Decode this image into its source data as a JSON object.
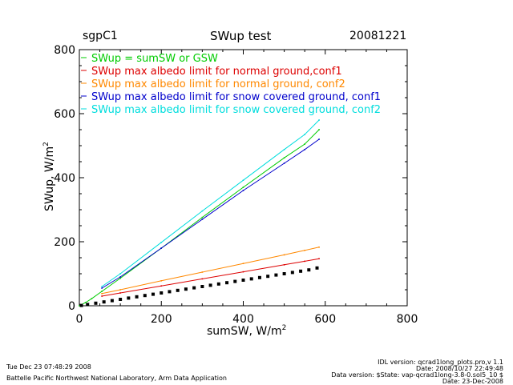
{
  "header": {
    "site": "sgpC1",
    "title": "SWup test",
    "date": "20081221"
  },
  "footer": {
    "timestamp": "Tue Dec 23 07:48:29 2008",
    "lab": "Battelle Pacific Northwest National Laboratory, Arm Data Application",
    "idl_version": "IDL version: qcrad1long_plots.pro,v 1.1",
    "idl_date": "Date: 2008/10/27 22:49:48",
    "data_version": "Data version: $State: vap-qcrad1long-3.8-0.sol5_10 $",
    "data_date": "Date: 23-Dec-2008"
  },
  "chart_data": {
    "type": "scatter",
    "title": "SWup test",
    "xlabel": "sumSW, W/m",
    "xlabel_sup": "2",
    "ylabel": "SWup, W/m",
    "ylabel_sup": "2",
    "xlim": [
      0,
      800
    ],
    "ylim": [
      0,
      800
    ],
    "xticks": [
      0,
      200,
      400,
      600,
      800
    ],
    "yticks": [
      0,
      200,
      400,
      600,
      800
    ],
    "grid": false,
    "legend_position": "top-left",
    "series": [
      {
        "name": "SWup = sumSW or GSW",
        "color": "#00cc00",
        "x": [
          0,
          15,
          30,
          55,
          100,
          200,
          300,
          400,
          500,
          550,
          585
        ],
        "y": [
          0,
          10,
          22,
          45,
          86,
          180,
          276,
          370,
          462,
          505,
          550
        ]
      },
      {
        "name": "SWup max albedo limit for normal ground,conf1",
        "color": "#dd0000",
        "x": [
          55,
          100,
          200,
          300,
          400,
          500,
          550,
          585
        ],
        "y": [
          30,
          40,
          62,
          84,
          106,
          128,
          139,
          147
        ]
      },
      {
        "name": "SWup max albedo limit for normal ground, conf2",
        "color": "#ff8800",
        "x": [
          55,
          100,
          200,
          300,
          400,
          500,
          550,
          585
        ],
        "y": [
          38,
          50,
          78,
          105,
          132,
          159,
          173,
          183
        ]
      },
      {
        "name": "SWup max albedo limit for snow covered ground, conf1",
        "color": "#0000cc",
        "x": [
          55,
          100,
          200,
          300,
          400,
          500,
          550,
          585
        ],
        "y": [
          55,
          90,
          180,
          270,
          360,
          445,
          488,
          520
        ]
      },
      {
        "name": "SWup max albedo limit for snow covered ground, conf2",
        "color": "#00dddd",
        "x": [
          55,
          100,
          200,
          300,
          400,
          500,
          550,
          585
        ],
        "y": [
          60,
          100,
          198,
          296,
          392,
          488,
          535,
          580
        ]
      },
      {
        "name": "",
        "color": "#000000",
        "x": [
          5,
          20,
          40,
          60,
          80,
          100,
          120,
          140,
          160,
          180,
          200,
          220,
          240,
          260,
          280,
          300,
          320,
          340,
          360,
          380,
          400,
          420,
          440,
          460,
          480,
          500,
          520,
          540,
          560,
          580
        ],
        "y": [
          1,
          4,
          8,
          12,
          16,
          20,
          24,
          28,
          32,
          36,
          40,
          44,
          48,
          52,
          56,
          60,
          64,
          68,
          72,
          76,
          80,
          84,
          88,
          92,
          96,
          100,
          104,
          108,
          112,
          118
        ]
      }
    ]
  }
}
